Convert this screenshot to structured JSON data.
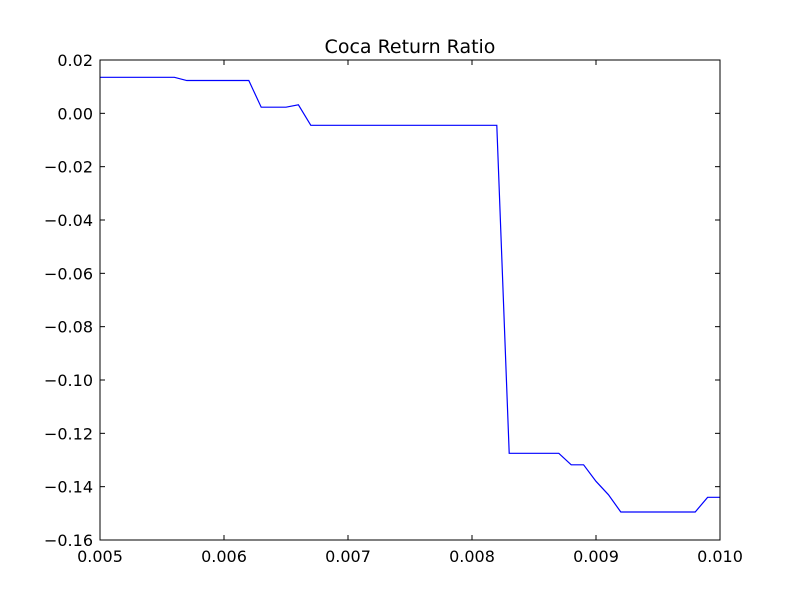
{
  "chart_data": {
    "type": "line",
    "title": "Coca Return Ratio",
    "xlabel": "",
    "ylabel": "",
    "xlim": [
      0.005,
      0.01
    ],
    "ylim": [
      -0.16,
      0.02
    ],
    "x_ticks": [
      0.005,
      0.006,
      0.007,
      0.008,
      0.009,
      0.01
    ],
    "x_tick_labels": [
      "0.005",
      "0.006",
      "0.007",
      "0.008",
      "0.009",
      "0.010"
    ],
    "y_ticks": [
      0.02,
      0.0,
      -0.02,
      -0.04,
      -0.06,
      -0.08,
      -0.1,
      -0.12,
      -0.14,
      -0.16
    ],
    "y_tick_labels": [
      "0.02",
      "0.00",
      "−0.02",
      "−0.04",
      "−0.06",
      "−0.08",
      "−0.10",
      "−0.12",
      "−0.14",
      "−0.16"
    ],
    "grid": false,
    "legend": false,
    "series": [
      {
        "color": "#0000ff",
        "x": [
          0.005,
          0.0051,
          0.0052,
          0.0053,
          0.0054,
          0.0055,
          0.0056,
          0.0057,
          0.0058,
          0.0059,
          0.006,
          0.0061,
          0.0062,
          0.0063,
          0.0064,
          0.0065,
          0.0066,
          0.0067,
          0.0068,
          0.0069,
          0.007,
          0.0071,
          0.0072,
          0.0073,
          0.0074,
          0.0075,
          0.0076,
          0.0077,
          0.0078,
          0.0079,
          0.008,
          0.0081,
          0.0082,
          0.0083,
          0.0084,
          0.0085,
          0.0086,
          0.0087,
          0.0088,
          0.0089,
          0.009,
          0.0091,
          0.0092,
          0.0093,
          0.0094,
          0.0095,
          0.0096,
          0.0097,
          0.0098,
          0.0099,
          0.01
        ],
        "y": [
          0.0135,
          0.0135,
          0.0135,
          0.0135,
          0.0135,
          0.0135,
          0.0135,
          0.0123,
          0.0123,
          0.0123,
          0.0123,
          0.0123,
          0.0123,
          0.0023,
          0.0023,
          0.0023,
          0.0032,
          -0.0045,
          -0.0045,
          -0.0045,
          -0.0045,
          -0.0045,
          -0.0045,
          -0.0045,
          -0.0045,
          -0.0045,
          -0.0045,
          -0.0045,
          -0.0045,
          -0.0045,
          -0.0045,
          -0.0045,
          -0.0045,
          -0.1275,
          -0.1275,
          -0.1275,
          -0.1275,
          -0.1275,
          -0.1318,
          -0.1318,
          -0.138,
          -0.143,
          -0.1495,
          -0.1495,
          -0.1495,
          -0.1495,
          -0.1495,
          -0.1495,
          -0.1495,
          -0.144,
          -0.144
        ]
      }
    ]
  }
}
